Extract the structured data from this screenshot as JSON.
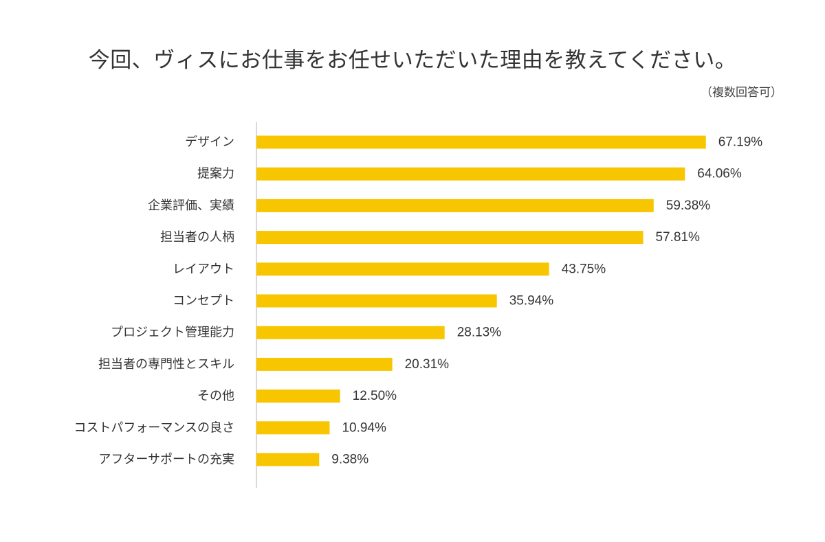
{
  "chart_data": {
    "type": "bar",
    "orientation": "horizontal",
    "title": "今回、ヴィスにお仕事をお任せいただいた理由を教えてください。",
    "subtitle": "（複数回答可）",
    "categories": [
      "デザイン",
      "提案力",
      "企業評価、実績",
      "担当者の人柄",
      "レイアウト",
      "コンセプト",
      "プロジェクト管理能力",
      "担当者の専門性とスキル",
      "その他",
      "コストパフォーマンスの良さ",
      "アフターサポートの充実"
    ],
    "values": [
      67.19,
      64.06,
      59.38,
      57.81,
      43.75,
      35.94,
      28.13,
      20.31,
      12.5,
      10.94,
      9.38
    ],
    "value_labels": [
      "67.19%",
      "64.06%",
      "59.38%",
      "57.81%",
      "43.75%",
      "35.94%",
      "28.13%",
      "20.31%",
      "12.50%",
      "10.94%",
      "9.38%"
    ],
    "unit": "%",
    "bar_color": "#F8C600",
    "axis_color": "#CCCCCC",
    "grid": false,
    "legend": false
  }
}
